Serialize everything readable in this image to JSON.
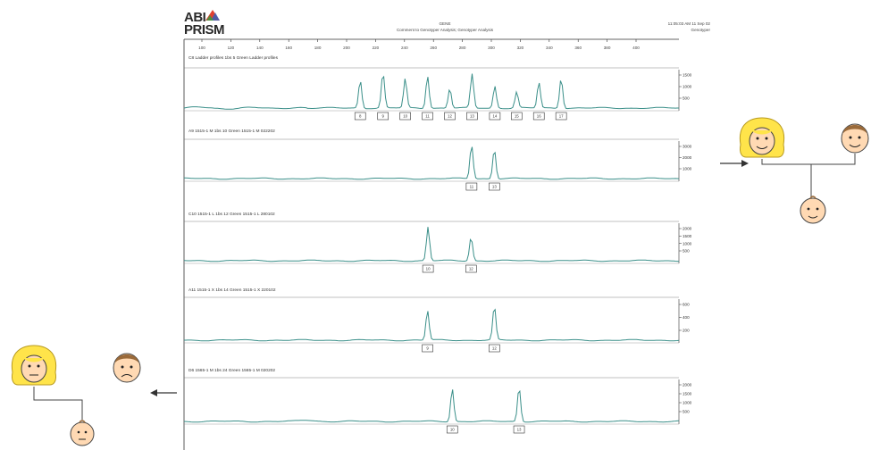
{
  "logo": {
    "line1": "ABI",
    "line2": "PRISM"
  },
  "header": {
    "center_title": "GENE",
    "center_subtitle": "Comment to Genotyper Analysis; Genotyper Analysis",
    "right_line1": "11:05:03 AM 11 Sep 02",
    "right_line2": "Genotyper"
  },
  "axis": {
    "ticks": [
      "100",
      "120",
      "140",
      "160",
      "180",
      "200",
      "220",
      "240",
      "260",
      "280",
      "300",
      "320",
      "340",
      "360",
      "380",
      "400"
    ]
  },
  "panels": [
    {
      "label": "C8 Ladder profiles 1bs     5 Green  Ladder profiles",
      "y_ticks": [
        "1500",
        "1000",
        "500"
      ],
      "peaks": [
        {
          "pos": 0.356,
          "h": 0.78,
          "allele": "8"
        },
        {
          "pos": 0.402,
          "h": 0.98,
          "allele": "9"
        },
        {
          "pos": 0.447,
          "h": 0.82,
          "allele": "10"
        },
        {
          "pos": 0.492,
          "h": 0.92,
          "allele": "11"
        },
        {
          "pos": 0.537,
          "h": 0.55,
          "allele": "12"
        },
        {
          "pos": 0.582,
          "h": 0.95,
          "allele": "13"
        },
        {
          "pos": 0.628,
          "h": 0.62,
          "allele": "14"
        },
        {
          "pos": 0.672,
          "h": 0.45,
          "allele": "15"
        },
        {
          "pos": 0.717,
          "h": 0.72,
          "allele": "16"
        },
        {
          "pos": 0.762,
          "h": 0.85,
          "allele": "17"
        }
      ]
    },
    {
      "label": "A9 1515-1 M 1bs     10 Green  1515-1 M 022202",
      "y_ticks": [
        "3000",
        "2000",
        "1000"
      ],
      "peaks": [
        {
          "pos": 0.581,
          "h": 0.98,
          "allele": "11"
        },
        {
          "pos": 0.627,
          "h": 0.86,
          "allele": "13"
        }
      ]
    },
    {
      "label": "C10 1515-1 L 1bs     12 Green  1515-1 L 280102",
      "y_ticks": [
        "2000",
        "1500",
        "1000",
        "500"
      ],
      "peaks": [
        {
          "pos": 0.493,
          "h": 0.97,
          "allele": "10"
        },
        {
          "pos": 0.58,
          "h": 0.68,
          "allele": "12"
        }
      ]
    },
    {
      "label": "A11 1515-1 X 1bs     14 Green  1515-1 X 220102",
      "y_ticks": [
        "600",
        "400",
        "200"
      ],
      "peaks": [
        {
          "pos": 0.492,
          "h": 0.78,
          "allele": "9"
        },
        {
          "pos": 0.627,
          "h": 0.88,
          "allele": "12"
        }
      ]
    },
    {
      "label": "D6 1565-1 M 1bs     24 Green  1565-1 M 020202",
      "y_ticks": [
        "2000",
        "1500",
        "1000",
        "500"
      ],
      "peaks": [
        {
          "pos": 0.542,
          "h": 0.85,
          "allele": "10"
        },
        {
          "pos": 0.677,
          "h": 0.88,
          "allele": "13"
        }
      ]
    }
  ],
  "colors": {
    "trace": "#3a8f89",
    "frame": "#333333",
    "hair": "#ffe44a",
    "skin": "#ffd9b3",
    "brown_hair": "#9a6a3a",
    "arrow": "#333333"
  }
}
